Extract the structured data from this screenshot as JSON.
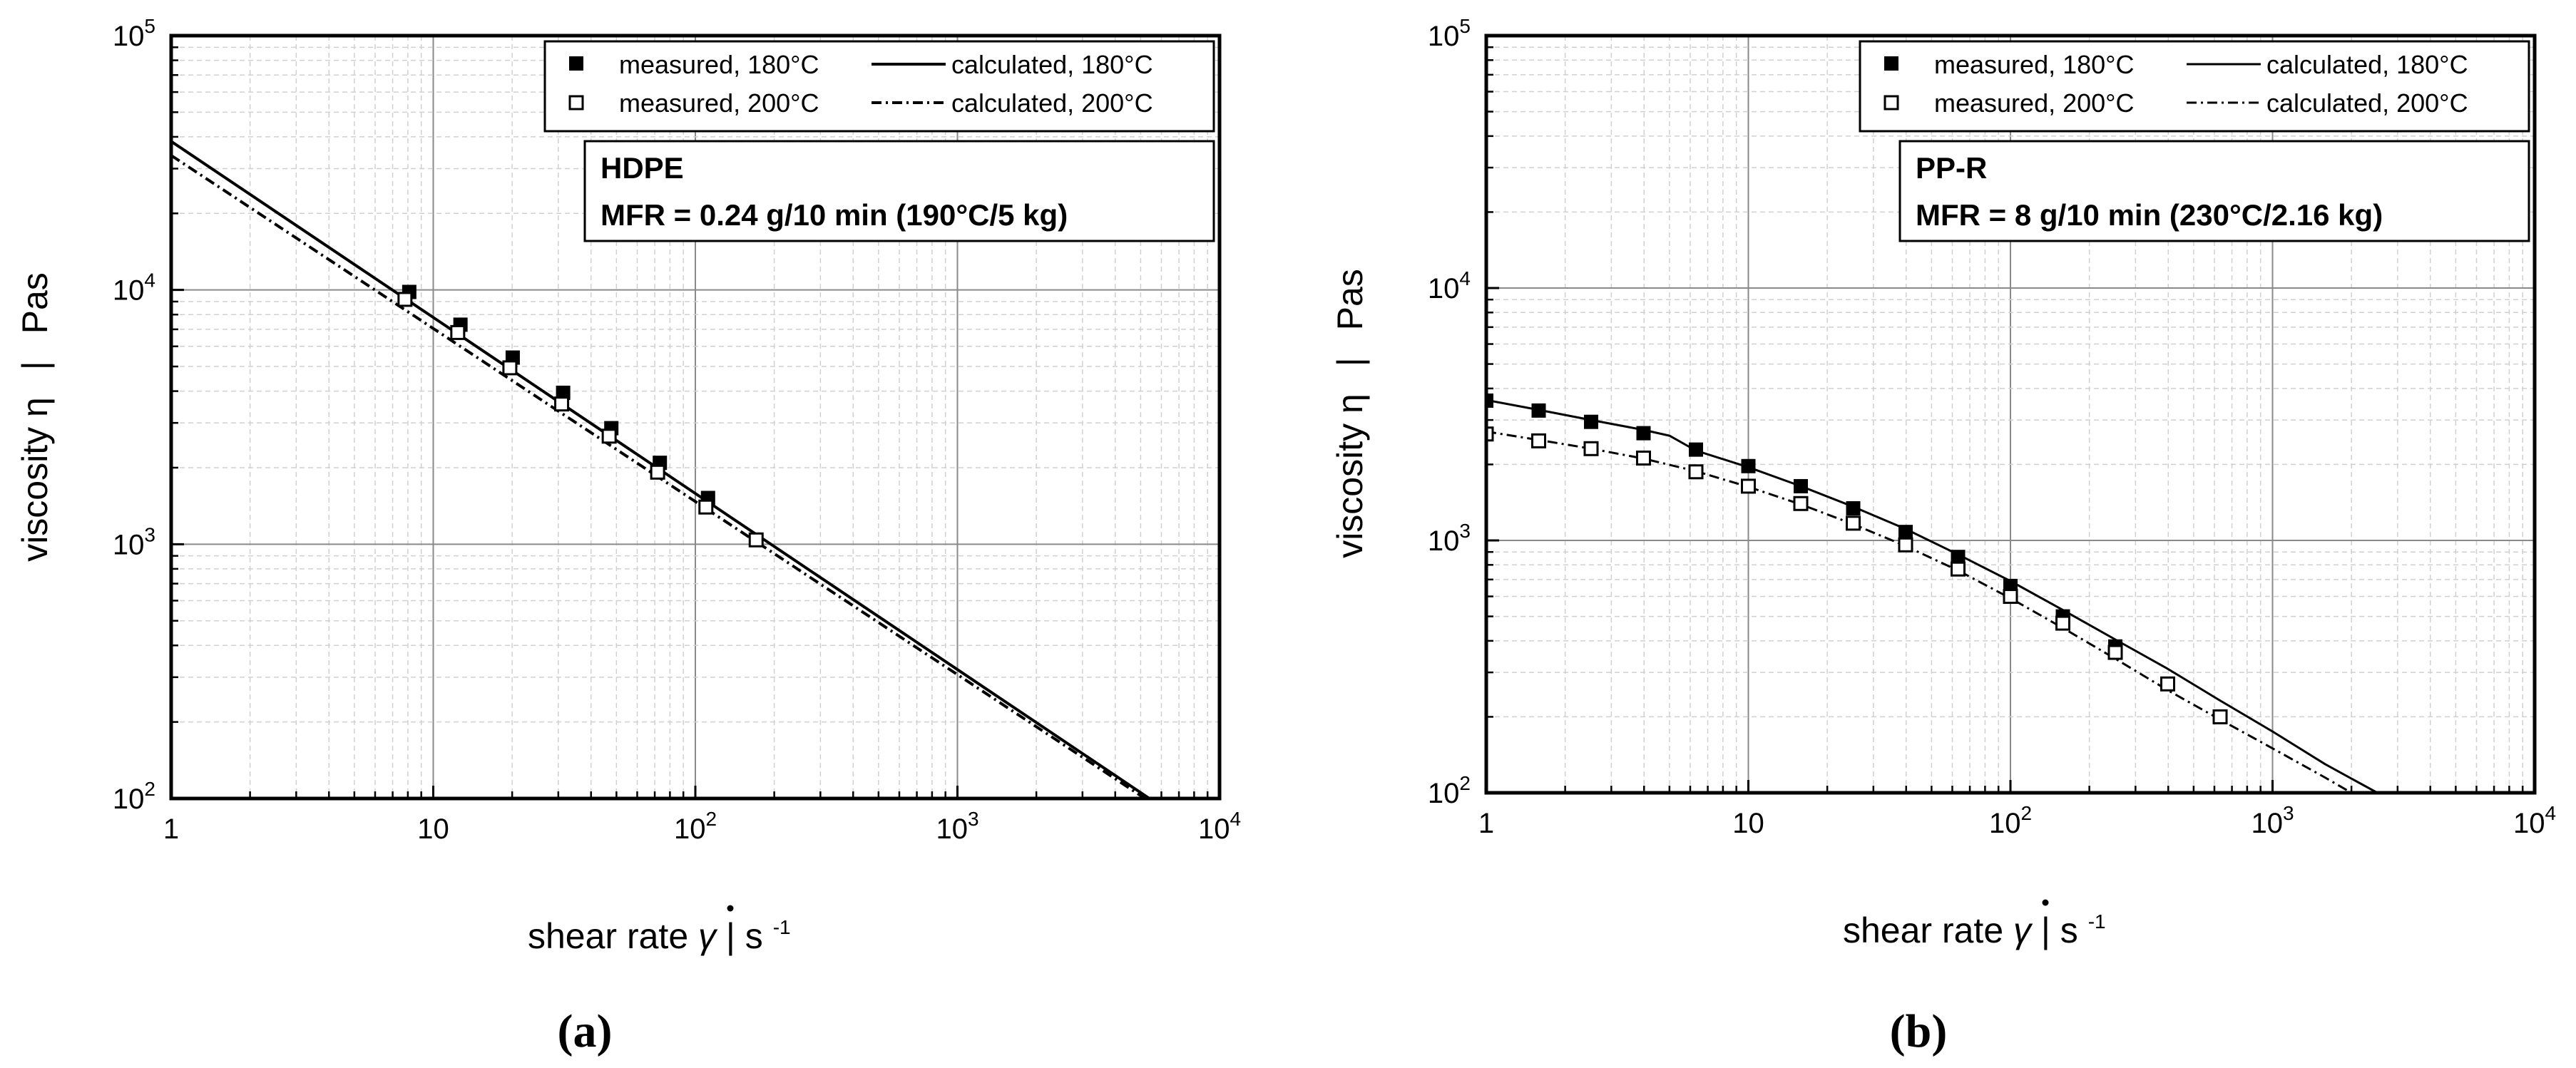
{
  "figure": {
    "panels": [
      {
        "id": "a",
        "label": "(a)",
        "info_box": {
          "line1": "HDPE",
          "line2": "MFR = 0.24 g/10 min (190°C/5 kg)"
        },
        "legend": [
          {
            "marker": "filled",
            "text": "measured, 180°C"
          },
          {
            "marker": "open",
            "text": "measured, 200°C"
          },
          {
            "line": "solid",
            "text": "calculated, 180°C"
          },
          {
            "line": "dashdot",
            "text": "calculated, 200°C"
          }
        ]
      },
      {
        "id": "b",
        "label": "(b)",
        "info_box": {
          "line1": "PP-R",
          "line2": "MFR = 8 g/10 min (230°C/2.16 kg)"
        },
        "legend": [
          {
            "marker": "filled",
            "text": "measured, 180°C"
          },
          {
            "marker": "open",
            "text": "measured, 200°C"
          },
          {
            "line": "solid",
            "text": "calculated, 180°C"
          },
          {
            "line": "dashdot",
            "text": "calculated, 200°C"
          }
        ]
      }
    ]
  },
  "chart_data": [
    {
      "type": "scatter",
      "title": "HDPE",
      "xlabel": "shear rate γ̇ | s⁻¹",
      "ylabel": "viscosity η | Pas",
      "xlabel_parts": {
        "pre": "shear rate ",
        "symbol": "γ",
        "mid": " | s",
        "sup": "-1"
      },
      "ylabel_parts": {
        "pre": "viscosity η",
        "sep": "|",
        "unit": "Pas"
      },
      "xscale": "log",
      "yscale": "log",
      "xlim": [
        1,
        10000
      ],
      "ylim": [
        100,
        100000
      ],
      "x_ticks": [
        {
          "value": 1,
          "base": "1",
          "exp": ""
        },
        {
          "value": 10,
          "base": "10",
          "exp": ""
        },
        {
          "value": 100,
          "base": "10",
          "exp": "2"
        },
        {
          "value": 1000,
          "base": "10",
          "exp": "3"
        },
        {
          "value": 10000,
          "base": "10",
          "exp": "4"
        }
      ],
      "y_ticks": [
        {
          "value": 100,
          "base": "10",
          "exp": "2"
        },
        {
          "value": 1000,
          "base": "10",
          "exp": "3"
        },
        {
          "value": 10000,
          "base": "10",
          "exp": "4"
        },
        {
          "value": 100000,
          "base": "10",
          "exp": "5"
        }
      ],
      "grid": true,
      "legend_position": "top-right",
      "series": [
        {
          "name": "measured, 180°C",
          "kind": "marker",
          "marker": "filled",
          "x": [
            8.1,
            12.7,
            20.1,
            31.3,
            47.8,
            73.2,
            111.8
          ],
          "y": [
            9820,
            7300,
            5420,
            3940,
            2860,
            2090,
            1520
          ]
        },
        {
          "name": "measured, 200°C",
          "kind": "marker",
          "marker": "open",
          "x": [
            7.8,
            12.4,
            19.6,
            30.9,
            46.9,
            71.8,
            109.7,
            170.6
          ],
          "y": [
            9180,
            6800,
            4940,
            3560,
            2660,
            1920,
            1400,
            1040
          ]
        },
        {
          "name": "calculated, 180°C",
          "kind": "line",
          "line": "solid",
          "x": [
            1,
            5400
          ],
          "y": [
            38400,
            100
          ]
        },
        {
          "name": "calculated, 200°C",
          "kind": "line",
          "line": "dashdot",
          "x": [
            1,
            5200
          ],
          "y": [
            33800,
            100
          ]
        }
      ]
    },
    {
      "type": "scatter",
      "title": "PP-R",
      "xlabel": "shear rate γ̇ | s⁻¹",
      "ylabel": "viscosity η | Pas",
      "xlabel_parts": {
        "pre": "shear rate ",
        "symbol": "γ",
        "mid": " | s",
        "sup": "-1"
      },
      "ylabel_parts": {
        "pre": "viscosity η",
        "sep": "|",
        "unit": "Pas"
      },
      "xscale": "log",
      "yscale": "log",
      "xlim": [
        1,
        10000
      ],
      "ylim": [
        100,
        100000
      ],
      "x_ticks": [
        {
          "value": 1,
          "base": "1",
          "exp": ""
        },
        {
          "value": 10,
          "base": "10",
          "exp": ""
        },
        {
          "value": 100,
          "base": "10",
          "exp": "2"
        },
        {
          "value": 1000,
          "base": "10",
          "exp": "3"
        },
        {
          "value": 10000,
          "base": "10",
          "exp": "4"
        }
      ],
      "y_ticks": [
        {
          "value": 100,
          "base": "10",
          "exp": "2"
        },
        {
          "value": 1000,
          "base": "10",
          "exp": "3"
        },
        {
          "value": 10000,
          "base": "10",
          "exp": "4"
        },
        {
          "value": 100000,
          "base": "10",
          "exp": "5"
        }
      ],
      "grid": true,
      "legend_position": "top-right",
      "series": [
        {
          "name": "measured, 180°C",
          "kind": "marker",
          "marker": "filled",
          "x": [
            1,
            1.585,
            2.512,
            3.981,
            6.31,
            10,
            15.85,
            25.12,
            39.81,
            63.1,
            100,
            158.5,
            251.2
          ],
          "y": [
            3580,
            3270,
            2950,
            2660,
            2290,
            1970,
            1640,
            1340,
            1080,
            860,
            660,
            500,
            380
          ]
        },
        {
          "name": "measured, 200°C",
          "kind": "marker",
          "marker": "open",
          "x": [
            1,
            1.585,
            2.512,
            3.981,
            6.31,
            10,
            15.85,
            25.12,
            39.81,
            63.1,
            100,
            158.5,
            251.2,
            398.1,
            631
          ],
          "y": [
            2640,
            2480,
            2310,
            2120,
            1870,
            1640,
            1400,
            1170,
            960,
            770,
            600,
            470,
            360,
            270,
            200
          ]
        },
        {
          "name": "calculated, 180°C",
          "kind": "line",
          "line": "solid",
          "x": [
            1,
            1.585,
            2.512,
            3.981,
            5,
            6.31,
            10,
            15.85,
            25.12,
            39.81,
            63.1,
            100,
            158.5,
            251.2,
            398.1,
            631,
            1000,
            1585,
            2512,
            2650
          ],
          "y": [
            3600,
            3290,
            3000,
            2740,
            2600,
            2270,
            1950,
            1640,
            1360,
            1110,
            880,
            690,
            530,
            405,
            310,
            232,
            175,
            130,
            100,
            98
          ]
        },
        {
          "name": "calculated, 200°C",
          "kind": "line",
          "line": "dashdot",
          "x": [
            1,
            1.585,
            2.512,
            3.981,
            6.31,
            10,
            15.85,
            25.12,
            39.81,
            63.1,
            100,
            158.5,
            251.2,
            398.1,
            631,
            1000,
            1585,
            2000
          ],
          "y": [
            2700,
            2500,
            2310,
            2110,
            1880,
            1630,
            1390,
            1160,
            950,
            760,
            590,
            450,
            340,
            255,
            195,
            150,
            115,
            100
          ]
        }
      ]
    }
  ]
}
